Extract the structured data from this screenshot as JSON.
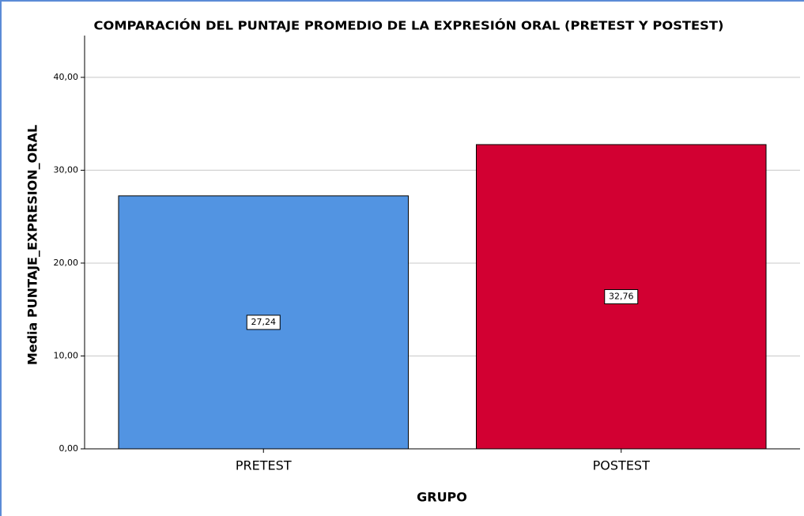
{
  "chart_data": {
    "type": "bar",
    "title": "COMPARACIÓN DEL PUNTAJE PROMEDIO DE LA EXPRESIÓN ORAL (PRETEST Y POSTEST)",
    "x_label": "GRUPO",
    "y_label": "Media PUNTAJE_EXPRESION_ORAL",
    "categories": [
      "PRETEST",
      "POSTEST"
    ],
    "values": [
      27.24,
      32.76
    ],
    "value_labels": [
      "27,24",
      "32,76"
    ],
    "colors": [
      "#5294e2",
      "#d20032"
    ],
    "ylim": [
      0,
      44.5
    ],
    "yticks": [
      {
        "value": 0,
        "label": "0,00"
      },
      {
        "value": 10,
        "label": "10,00"
      },
      {
        "value": 20,
        "label": "20,00"
      },
      {
        "value": 30,
        "label": "30,00"
      },
      {
        "value": 40,
        "label": "40,00"
      }
    ],
    "grid": true
  }
}
